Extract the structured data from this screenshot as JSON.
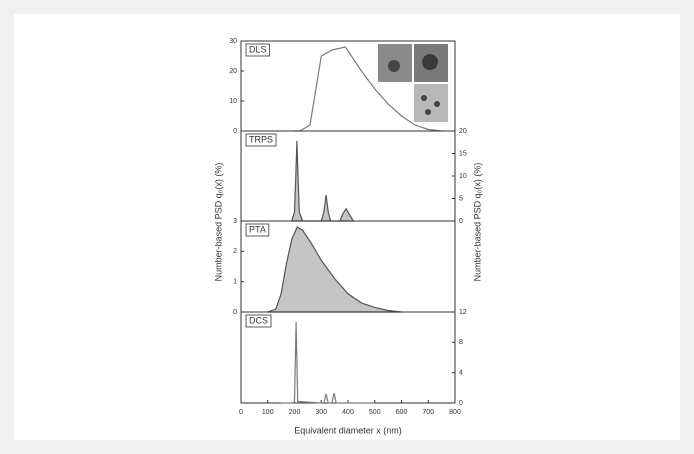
{
  "axis_labels": {
    "x": "Equivalent diameter x (nm)",
    "y_left": "Number-based PSD q₀(x) (%)",
    "y_right": "Number-based PSD q₀(x) (%)"
  },
  "chart_data": [
    {
      "type": "line",
      "title": "DLS",
      "color": "#7a7a7a",
      "fill": false,
      "x": [
        200,
        220,
        258,
        300,
        340,
        390,
        450,
        500,
        550,
        600,
        650,
        700,
        750
      ],
      "values": [
        0,
        0,
        2,
        25,
        27,
        28,
        20,
        14,
        9,
        5,
        2,
        0.5,
        0
      ],
      "xlim": [
        0,
        800
      ],
      "ylim": [
        0,
        30
      ],
      "yticks": [
        0,
        10,
        20,
        30
      ]
    },
    {
      "type": "line",
      "title": "TRPS",
      "color": "#555555",
      "fill": true,
      "x": [
        190,
        200,
        205,
        209,
        213,
        218,
        230,
        300,
        310,
        318,
        326,
        335,
        370,
        380,
        393,
        405,
        420
      ],
      "values": [
        0,
        2,
        10,
        17.8,
        10,
        2,
        0,
        0,
        2,
        5.8,
        2,
        0,
        0,
        1.5,
        2.7,
        1.5,
        0
      ],
      "xlim": [
        0,
        800
      ],
      "y2lim": [
        0,
        20
      ],
      "y2ticks": [
        0,
        5,
        10,
        15,
        20
      ]
    },
    {
      "type": "line",
      "title": "PTA",
      "color": "#555555",
      "fill": true,
      "x": [
        100,
        130,
        150,
        170,
        190,
        210,
        230,
        260,
        300,
        350,
        400,
        450,
        500,
        550,
        600
      ],
      "values": [
        0,
        0.1,
        0.6,
        1.6,
        2.4,
        2.8,
        2.7,
        2.3,
        1.7,
        1.1,
        0.6,
        0.3,
        0.15,
        0.05,
        0
      ],
      "xlim": [
        0,
        800
      ],
      "ylim": [
        0,
        3
      ],
      "yticks": [
        0,
        1,
        2,
        3
      ]
    },
    {
      "type": "line",
      "title": "DCS",
      "color": "#7a7a7a",
      "fill": false,
      "x": [
        150,
        195,
        200,
        206,
        212,
        300,
        310,
        318,
        326,
        340,
        348,
        356,
        500
      ],
      "values": [
        0,
        0,
        0.2,
        10.7,
        0.2,
        0,
        0,
        1.2,
        0,
        0,
        1.3,
        0,
        0
      ],
      "xlim": [
        0,
        800
      ],
      "y2lim": [
        0,
        12
      ],
      "y2ticks": [
        0,
        4,
        8,
        12
      ],
      "xticks": [
        0,
        100,
        200,
        300,
        400,
        500,
        600,
        700,
        800
      ]
    }
  ]
}
